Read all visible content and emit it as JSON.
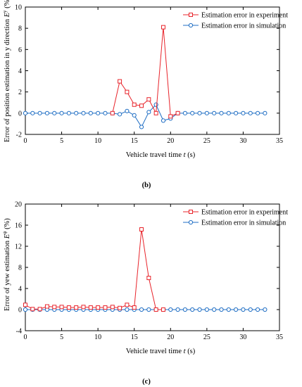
{
  "colors": {
    "experiment": "#e8242b",
    "simulation": "#1f6ec4",
    "axis": "#000000"
  },
  "chart_data": [
    {
      "panel_label": "(b)",
      "type": "line",
      "xlabel_prefix": "Vehicle travel time ",
      "xlabel_var": "t",
      "xlabel_suffix": " (s)",
      "ylabel_prefix": "Error of position estimation in y direction ",
      "ylabel_var": "E",
      "ylabel_sup": "y",
      "ylabel_suffix": " (%)",
      "xlim": [
        0,
        35
      ],
      "ylim": [
        -2,
        10
      ],
      "xticks": [
        "0",
        "5",
        "10",
        "15",
        "20",
        "25",
        "30",
        "35"
      ],
      "yticks": [
        "-2",
        "0",
        "2",
        "4",
        "6",
        "8",
        "10"
      ],
      "xtick_values": [
        0,
        5,
        10,
        15,
        20,
        25,
        30,
        35
      ],
      "ytick_values": [
        -2,
        0,
        2,
        4,
        6,
        8,
        10
      ],
      "legend_position": "top-right",
      "series": [
        {
          "name": "Estimation error in experiment",
          "color_key": "experiment",
          "x": [
            12,
            13,
            14,
            15,
            16,
            17,
            18,
            19,
            20,
            21
          ],
          "y": [
            0,
            3.0,
            2.0,
            0.8,
            0.7,
            1.3,
            0.0,
            8.1,
            -0.3,
            0
          ]
        },
        {
          "name": "Estimation error in simulation",
          "color_key": "simulation",
          "x": [
            0,
            1,
            2,
            3,
            4,
            5,
            6,
            7,
            8,
            9,
            10,
            11,
            12,
            13,
            14,
            15,
            16,
            17,
            18,
            19,
            20,
            21,
            22,
            23,
            24,
            25,
            26,
            27,
            28,
            29,
            30,
            31,
            32,
            33
          ],
          "y": [
            0,
            0,
            0,
            0,
            0,
            0,
            0,
            0,
            0,
            0,
            0,
            0,
            0,
            -0.1,
            0.2,
            -0.2,
            -1.3,
            0.1,
            0.8,
            -0.7,
            -0.5,
            0,
            0,
            0,
            0,
            0,
            0,
            0,
            0,
            0,
            0,
            0,
            0,
            0
          ]
        }
      ]
    },
    {
      "panel_label": "(c)",
      "type": "line",
      "xlabel_prefix": "Vehicle travel time ",
      "xlabel_var": "t",
      "xlabel_suffix": " (s)",
      "ylabel_prefix": "Error of yew estimation ",
      "ylabel_var": "E",
      "ylabel_sup": "ψ",
      "ylabel_suffix": " (%)",
      "xlim": [
        0,
        35
      ],
      "ylim": [
        -4,
        20
      ],
      "xticks": [
        "0",
        "5",
        "10",
        "15",
        "20",
        "25",
        "30",
        "35"
      ],
      "yticks": [
        "-4",
        "0",
        "4",
        "8",
        "12",
        "16",
        "20"
      ],
      "xtick_values": [
        0,
        5,
        10,
        15,
        20,
        25,
        30,
        35
      ],
      "ytick_values": [
        -4,
        0,
        4,
        8,
        12,
        16,
        20
      ],
      "legend_position": "top-right",
      "series": [
        {
          "name": "Estimation error in experiment",
          "color_key": "experiment",
          "x": [
            0,
            1,
            2,
            3,
            4,
            5,
            6,
            7,
            8,
            9,
            10,
            11,
            12,
            13,
            14,
            15,
            16,
            17,
            18,
            19
          ],
          "y": [
            0.9,
            0.1,
            0.1,
            0.6,
            0.5,
            0.5,
            0.4,
            0.4,
            0.5,
            0.4,
            0.4,
            0.4,
            0.5,
            0.3,
            0.9,
            0.4,
            15.2,
            6.0,
            0,
            0
          ]
        },
        {
          "name": "Estimation error in simulation",
          "color_key": "simulation",
          "x": [
            0,
            1,
            2,
            3,
            4,
            5,
            6,
            7,
            8,
            9,
            10,
            11,
            12,
            13,
            14,
            15,
            16,
            17,
            18,
            19,
            20,
            21,
            22,
            23,
            24,
            25,
            26,
            27,
            28,
            29,
            30,
            31,
            32,
            33
          ],
          "y": [
            0,
            0,
            0,
            0,
            0,
            0,
            0,
            0,
            0,
            0,
            0,
            0,
            0,
            0,
            0,
            0,
            0,
            0,
            0,
            0,
            0,
            0,
            0,
            0,
            0,
            0,
            0,
            0,
            0,
            0,
            0,
            0,
            0,
            0
          ]
        }
      ]
    }
  ]
}
